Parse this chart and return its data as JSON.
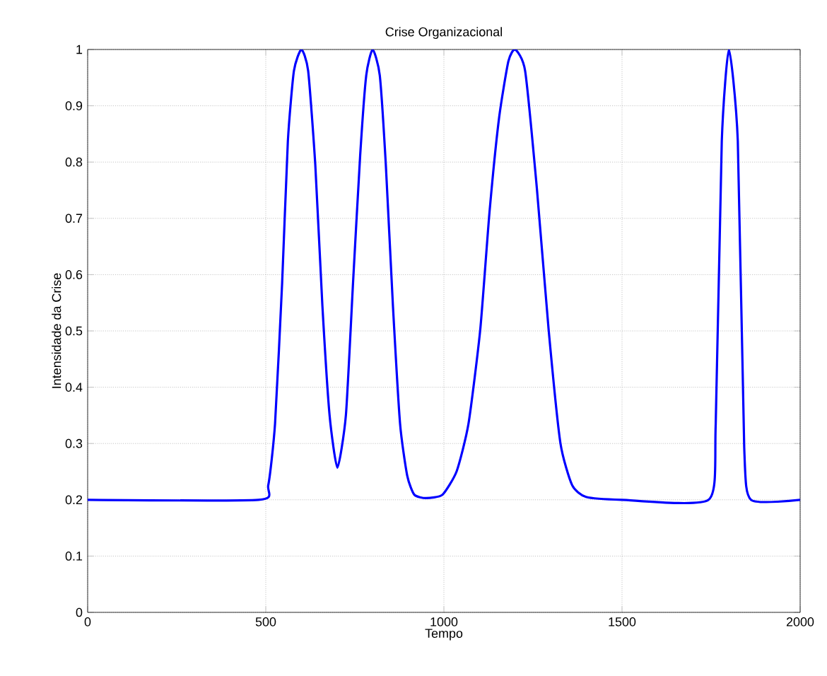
{
  "chart_data": {
    "type": "line",
    "title": "Crise Organizacional",
    "xlabel": "Tempo",
    "ylabel": "Intensidade da Crise",
    "xlim": [
      0,
      2000
    ],
    "ylim": [
      0,
      1
    ],
    "xticks": [
      0,
      500,
      1000,
      1500,
      2000
    ],
    "yticks": [
      0,
      0.1,
      0.2,
      0.3,
      0.4,
      0.5,
      0.6,
      0.7,
      0.8,
      0.9,
      1
    ],
    "grid": true,
    "line_style": "solid",
    "marker": "none",
    "series": [
      {
        "color": "#0000ff",
        "x": [
          0,
          480,
          507,
          526,
          546,
          562,
          579,
          600,
          619,
          639,
          659,
          679,
          701,
          725,
          745,
          765,
          782,
          800,
          820,
          837,
          857,
          877,
          897,
          917,
          950,
          996,
          1036,
          1069,
          1102,
          1128,
          1155,
          1181,
          1200,
          1228,
          1261,
          1294,
          1327,
          1360,
          1399,
          1499,
          1743,
          1763,
          1780,
          1800,
          1825,
          1843,
          1862,
          2000
        ],
        "values": [
          0.2,
          0.2,
          0.226,
          0.335,
          0.586,
          0.837,
          0.962,
          1,
          0.962,
          0.795,
          0.544,
          0.351,
          0.257,
          0.351,
          0.586,
          0.812,
          0.954,
          1,
          0.954,
          0.795,
          0.544,
          0.335,
          0.243,
          0.209,
          0.203,
          0.209,
          0.251,
          0.335,
          0.502,
          0.711,
          0.879,
          0.979,
          1,
          0.962,
          0.753,
          0.502,
          0.301,
          0.226,
          0.205,
          0.2,
          0.2,
          0.335,
          0.837,
          1,
          0.837,
          0.293,
          0.2,
          0.2
        ]
      }
    ]
  }
}
